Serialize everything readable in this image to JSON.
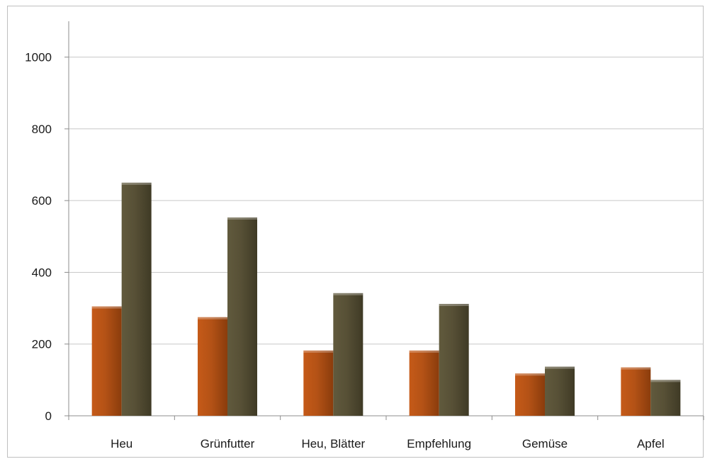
{
  "chart_data": {
    "type": "bar",
    "title": "",
    "xlabel": "",
    "ylabel": "",
    "categories": [
      "Heu",
      "Grünfutter",
      "Heu, Blätter",
      "Empfehlung",
      "Gemüse",
      "Apfel"
    ],
    "series": [
      {
        "color": "#a84c12",
        "values": [
          305,
          275,
          182,
          182,
          118,
          135
        ]
      },
      {
        "color": "#514a31",
        "values": [
          650,
          553,
          342,
          312,
          137,
          100
        ]
      }
    ],
    "ylim": [
      0,
      1100
    ],
    "yticks": [
      0,
      200,
      400,
      600,
      800,
      1000
    ],
    "grid": true,
    "legend": "none"
  }
}
